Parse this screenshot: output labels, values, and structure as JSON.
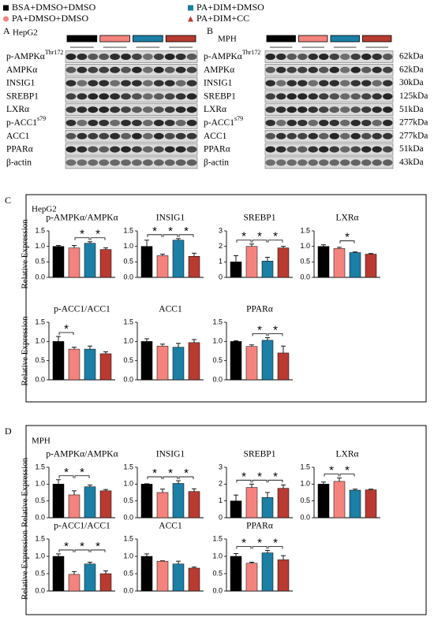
{
  "legend": [
    {
      "name": "BSA+DMSO+DMSO",
      "color": "#000000",
      "marker": "square"
    },
    {
      "name": "PA+DMSO+DMSO",
      "color": "#f4837d",
      "marker": "circle"
    },
    {
      "name": "PA+DIM+DMSO",
      "color": "#1b7fa6",
      "marker": "square"
    },
    {
      "name": "PA+DIM+CC",
      "color": "#b83a30",
      "marker": "triangle"
    }
  ],
  "blots": [
    {
      "panel": "A",
      "cell": "HepG2",
      "proteins": [
        {
          "name": "p-AMPKα",
          "sup": "Thr172"
        },
        {
          "name": "AMPKα"
        },
        {
          "name": "INSIG1"
        },
        {
          "name": "SREBP1"
        },
        {
          "name": "LXRα"
        },
        {
          "name": "p-ACC1",
          "sup": "s79"
        },
        {
          "name": "ACC1"
        },
        {
          "name": "PPARα"
        },
        {
          "name": "β-actin"
        }
      ]
    },
    {
      "panel": "B",
      "cell": "MPH",
      "proteins": [
        {
          "name": "p-AMPKα",
          "sup": "Thr172",
          "size": "62kDa"
        },
        {
          "name": "AMPKα",
          "size": "62kDa"
        },
        {
          "name": "INSIG1",
          "size": "30kDa"
        },
        {
          "name": "SREBP1",
          "size": "125kDa"
        },
        {
          "name": "LXRα",
          "size": "51kDa"
        },
        {
          "name": "p-ACC1",
          "sup": "s79",
          "size": "277kDa"
        },
        {
          "name": "ACC1",
          "size": "277kDa"
        },
        {
          "name": "PPARα",
          "size": "51kDa"
        },
        {
          "name": "β-actin",
          "size": "43kDa"
        }
      ]
    }
  ],
  "panels": [
    {
      "label": "C",
      "cell": "HepG2"
    },
    {
      "label": "D",
      "cell": "MPH"
    }
  ],
  "chart_data": [
    {
      "type": "bar",
      "title": "p-AMPKα/AMPKα",
      "ylabel": "Relative Expression",
      "values": [
        1.0,
        0.95,
        1.1,
        0.9
      ],
      "errors": [
        0.03,
        0.08,
        0.05,
        0.05
      ],
      "ylim": [
        0,
        1.5
      ],
      "yticks": [
        {
          "value": 0,
          "label": "0.0"
        },
        {
          "value": 0.5,
          "label": "0.5"
        },
        {
          "value": 1,
          "label": "1.0"
        },
        {
          "value": 1.5,
          "label": "1.5"
        }
      ],
      "significance": [
        {
          "pair": [
            1,
            2
          ],
          "label": "*"
        },
        {
          "pair": [
            2,
            3
          ],
          "label": "*"
        }
      ]
    },
    {
      "type": "bar",
      "title": "INSIG1",
      "values": [
        1.0,
        0.7,
        1.2,
        0.68
      ],
      "errors": [
        0.2,
        0.05,
        0.05,
        0.1
      ],
      "ylim": [
        0,
        1.5
      ],
      "yticks": [
        {
          "value": 0,
          "label": "0.0"
        },
        {
          "value": 0.5,
          "label": "0.5"
        },
        {
          "value": 1,
          "label": "1.0"
        },
        {
          "value": 1.5,
          "label": "1.5"
        }
      ],
      "significance": [
        {
          "pair": [
            0,
            1
          ],
          "label": "*"
        },
        {
          "pair": [
            1,
            2
          ],
          "label": "*"
        },
        {
          "pair": [
            2,
            3
          ],
          "label": "*"
        }
      ]
    },
    {
      "type": "bar",
      "title": "SREBP1",
      "values": [
        1.0,
        2.0,
        1.05,
        1.9
      ],
      "errors": [
        0.4,
        0.15,
        0.25,
        0.1
      ],
      "ylim": [
        0,
        3
      ],
      "yticks": [
        0,
        1,
        2,
        3
      ],
      "significance": [
        {
          "pair": [
            0,
            1
          ],
          "label": "*"
        },
        {
          "pair": [
            1,
            2
          ],
          "label": "*"
        },
        {
          "pair": [
            2,
            3
          ],
          "label": "*"
        }
      ]
    },
    {
      "type": "bar",
      "title": "LXRα",
      "values": [
        1.0,
        0.93,
        0.8,
        0.75
      ],
      "errors": [
        0.05,
        0.04,
        0.02,
        0.02
      ],
      "ylim": [
        0,
        1.5
      ],
      "yticks": [
        {
          "value": 0,
          "label": "0.0"
        },
        {
          "value": 0.5,
          "label": "0.5"
        },
        {
          "value": 1,
          "label": "1.0"
        },
        {
          "value": 1.5,
          "label": "1.5"
        }
      ],
      "significance": [
        {
          "pair": [
            1,
            2
          ],
          "label": "*"
        }
      ]
    },
    {
      "type": "bar",
      "title": "p-ACC1/ACC1",
      "ylabel": "Relative Expression",
      "values": [
        1.0,
        0.8,
        0.8,
        0.68
      ],
      "errors": [
        0.13,
        0.05,
        0.08,
        0.05
      ],
      "ylim": [
        0,
        1.5
      ],
      "yticks": [
        {
          "value": 0,
          "label": "0.0"
        },
        {
          "value": 0.5,
          "label": "0.5"
        },
        {
          "value": 1,
          "label": "1.0"
        },
        {
          "value": 1.5,
          "label": "1.5"
        }
      ],
      "significance": [
        {
          "pair": [
            0,
            1
          ],
          "label": "*"
        }
      ]
    },
    {
      "type": "bar",
      "title": "ACC1",
      "values": [
        1.0,
        0.88,
        0.85,
        0.97
      ],
      "errors": [
        0.07,
        0.05,
        0.1,
        0.08
      ],
      "ylim": [
        0,
        1.5
      ],
      "yticks": [
        {
          "value": 0,
          "label": "0.0"
        },
        {
          "value": 0.5,
          "label": "0.5"
        },
        {
          "value": 1,
          "label": "1.0"
        },
        {
          "value": 1.5,
          "label": "1.5"
        }
      ],
      "significance": []
    },
    {
      "type": "bar",
      "title": "PPARα",
      "values": [
        1.0,
        0.87,
        1.03,
        0.7
      ],
      "errors": [
        0.02,
        0.04,
        0.07,
        0.18
      ],
      "ylim": [
        0,
        1.5
      ],
      "yticks": [
        {
          "value": 0,
          "label": "0.0"
        },
        {
          "value": 0.5,
          "label": "0.5"
        },
        {
          "value": 1,
          "label": "1.0"
        },
        {
          "value": 1.5,
          "label": "1.5"
        }
      ],
      "significance": [
        {
          "pair": [
            1,
            2
          ],
          "label": "*"
        },
        {
          "pair": [
            2,
            3
          ],
          "label": "*"
        }
      ]
    },
    {
      "type": "bar",
      "title": "p-AMPKα/AMPKα",
      "ylabel": "Relative Expression",
      "values": [
        1.0,
        0.68,
        0.92,
        0.8
      ],
      "errors": [
        0.13,
        0.12,
        0.05,
        0.04
      ],
      "ylim": [
        0,
        1.5
      ],
      "yticks": [
        {
          "value": 0,
          "label": "0.0"
        },
        {
          "value": 0.5,
          "label": "0.5"
        },
        {
          "value": 1,
          "label": "1.0"
        },
        {
          "value": 1.5,
          "label": "1.5"
        }
      ],
      "significance": [
        {
          "pair": [
            0,
            1
          ],
          "label": "*"
        },
        {
          "pair": [
            1,
            2
          ],
          "label": "*"
        }
      ]
    },
    {
      "type": "bar",
      "title": "INSIG1",
      "values": [
        1.0,
        0.75,
        1.02,
        0.78
      ],
      "errors": [
        0.01,
        0.1,
        0.08,
        0.08
      ],
      "ylim": [
        0,
        1.5
      ],
      "yticks": [
        {
          "value": 0,
          "label": "0.0"
        },
        {
          "value": 0.5,
          "label": "0.5"
        },
        {
          "value": 1,
          "label": "1.0"
        },
        {
          "value": 1.5,
          "label": "1.5"
        }
      ],
      "significance": [
        {
          "pair": [
            0,
            1
          ],
          "label": "*"
        },
        {
          "pair": [
            1,
            2
          ],
          "label": "*"
        },
        {
          "pair": [
            2,
            3
          ],
          "label": "*"
        }
      ]
    },
    {
      "type": "bar",
      "title": "SREBP1",
      "values": [
        1.0,
        1.8,
        1.2,
        1.75
      ],
      "errors": [
        0.35,
        0.2,
        0.3,
        0.2
      ],
      "ylim": [
        0,
        3
      ],
      "yticks": [
        0,
        1,
        2,
        3
      ],
      "significance": [
        {
          "pair": [
            0,
            1
          ],
          "label": "*"
        },
        {
          "pair": [
            1,
            2
          ],
          "label": "*"
        },
        {
          "pair": [
            2,
            3
          ],
          "label": "*"
        }
      ]
    },
    {
      "type": "bar",
      "title": "LXRα",
      "values": [
        1.0,
        1.08,
        0.82,
        0.83
      ],
      "errors": [
        0.06,
        0.1,
        0.03,
        0.02
      ],
      "ylim": [
        0,
        1.5
      ],
      "yticks": [
        {
          "value": 0,
          "label": "0.0"
        },
        {
          "value": 0.5,
          "label": "0.5"
        },
        {
          "value": 1,
          "label": "1.0"
        },
        {
          "value": 1.5,
          "label": "1.5"
        }
      ],
      "significance": [
        {
          "pair": [
            0,
            1
          ],
          "label": "*"
        },
        {
          "pair": [
            1,
            2
          ],
          "label": "*"
        }
      ]
    },
    {
      "type": "bar",
      "title": "p-ACC1/ACC1",
      "ylabel": "Relative Expression",
      "values": [
        1.0,
        0.48,
        0.78,
        0.5
      ],
      "errors": [
        0.07,
        0.08,
        0.05,
        0.08
      ],
      "ylim": [
        0,
        1.5
      ],
      "yticks": [
        {
          "value": 0,
          "label": "0.0"
        },
        {
          "value": 0.5,
          "label": "0.5"
        },
        {
          "value": 1,
          "label": "1.0"
        },
        {
          "value": 1.5,
          "label": "1.5"
        }
      ],
      "significance": [
        {
          "pair": [
            0,
            1
          ],
          "label": "*"
        },
        {
          "pair": [
            1,
            2
          ],
          "label": "*"
        },
        {
          "pair": [
            2,
            3
          ],
          "label": "*"
        }
      ]
    },
    {
      "type": "bar",
      "title": "ACC1",
      "values": [
        1.0,
        0.86,
        0.78,
        0.66
      ],
      "errors": [
        0.07,
        0.01,
        0.08,
        0.03
      ],
      "ylim": [
        0,
        1.5
      ],
      "yticks": [
        {
          "value": 0,
          "label": "0.0"
        },
        {
          "value": 0.5,
          "label": "0.5"
        },
        {
          "value": 1,
          "label": "1.0"
        },
        {
          "value": 1.5,
          "label": "1.5"
        }
      ],
      "significance": []
    },
    {
      "type": "bar",
      "title": "PPARα",
      "values": [
        1.0,
        0.8,
        1.1,
        0.9
      ],
      "errors": [
        0.08,
        0.03,
        0.07,
        0.12
      ],
      "ylim": [
        0,
        1.5
      ],
      "yticks": [
        {
          "value": 0,
          "label": "0.0"
        },
        {
          "value": 0.5,
          "label": "0.5"
        },
        {
          "value": 1,
          "label": "1.0"
        },
        {
          "value": 1.5,
          "label": "1.5"
        }
      ],
      "significance": [
        {
          "pair": [
            0,
            1
          ],
          "label": "*"
        },
        {
          "pair": [
            1,
            2
          ],
          "label": "*"
        },
        {
          "pair": [
            2,
            3
          ],
          "label": "*"
        }
      ]
    }
  ]
}
